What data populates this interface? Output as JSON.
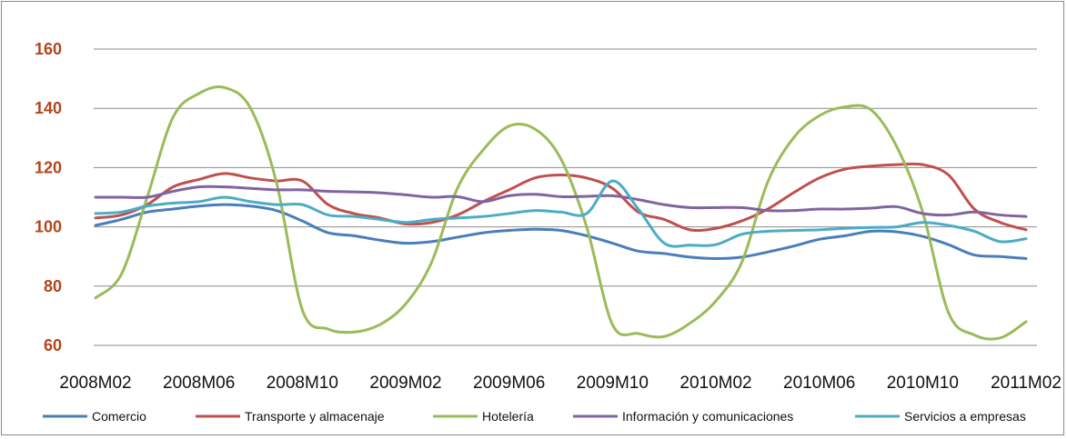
{
  "chart_data": {
    "type": "line",
    "title": "",
    "xlabel": "",
    "ylabel": "",
    "ylim": [
      60,
      160
    ],
    "yticks": [
      "60",
      "80",
      "100",
      "120",
      "140",
      "160"
    ],
    "grid": true,
    "legend_position": "bottom",
    "x": [
      "2008M02",
      "2008M03",
      "2008M04",
      "2008M05",
      "2008M06",
      "2008M07",
      "2008M08",
      "2008M09",
      "2008M10",
      "2008M11",
      "2008M12",
      "2009M01",
      "2009M02",
      "2009M03",
      "2009M04",
      "2009M05",
      "2009M06",
      "2009M07",
      "2009M08",
      "2009M09",
      "2009M10",
      "2009M11",
      "2009M12",
      "2010M01",
      "2010M02",
      "2010M03",
      "2010M04",
      "2010M05",
      "2010M06",
      "2010M07",
      "2010M08",
      "2010M09",
      "2010M10",
      "2010M11",
      "2010M12",
      "2011M01",
      "2011M02"
    ],
    "xticks": [
      "2008M02",
      "2008M06",
      "2008M10",
      "2009M02",
      "2009M06",
      "2009M10",
      "2010M02",
      "2010M06",
      "2010M10",
      "2011M02"
    ],
    "series": [
      {
        "name": "Comercio",
        "color": "#4a7ebb",
        "values": [
          100.5,
          102.5,
          105,
          106,
          107,
          107.5,
          107,
          105.5,
          102,
          98,
          97,
          95.5,
          94.5,
          95,
          96.5,
          98,
          98.8,
          99.2,
          98.8,
          97,
          94.5,
          91.8,
          91,
          89.8,
          89.3,
          89.8,
          91.5,
          93.5,
          95.8,
          97,
          98.5,
          98.3,
          96.8,
          94,
          90.5,
          90,
          89.3
        ]
      },
      {
        "name": "Transporte y almacenaje",
        "color": "#c0504d",
        "values": [
          103,
          104,
          107.5,
          113.5,
          116,
          118,
          116.5,
          115.5,
          115.5,
          107.5,
          104.5,
          103,
          101,
          101.5,
          104,
          108.5,
          112.5,
          116.5,
          117.5,
          116.5,
          113,
          105,
          102.5,
          99,
          99.5,
          102,
          106,
          111.5,
          116.5,
          119.5,
          120.5,
          121,
          121,
          117.5,
          106,
          101.5,
          99
        ]
      },
      {
        "name": "Hotelería",
        "color": "#9bbb59",
        "values": [
          76,
          84,
          110,
          137,
          145,
          147,
          140,
          115,
          72,
          65.5,
          64.5,
          67,
          74,
          88,
          113,
          126,
          134,
          133,
          123,
          100,
          67,
          64,
          63,
          67.5,
          75,
          88,
          115,
          130,
          137.5,
          140.5,
          139.5,
          127,
          105,
          71,
          63.5,
          62.5,
          68
        ]
      },
      {
        "name": "Información y comunicaciones",
        "color": "#8064a2",
        "values": [
          110,
          110,
          110,
          112,
          113.5,
          113.5,
          113,
          112.5,
          112.5,
          112,
          111.8,
          111.5,
          110.8,
          110,
          110.2,
          108.5,
          110.5,
          111,
          110.2,
          110.3,
          110.5,
          109.2,
          107.5,
          106.5,
          106.5,
          106.5,
          105.5,
          105.5,
          106,
          106,
          106.3,
          106.8,
          104.5,
          104,
          105,
          104,
          103.5
        ]
      },
      {
        "name": "Servicios a empresas",
        "color": "#4bacc6",
        "values": [
          104.5,
          105,
          107,
          108,
          108.5,
          110,
          108.5,
          107.5,
          107.5,
          104,
          103.5,
          102.5,
          101.5,
          102.5,
          103,
          103.5,
          104.5,
          105.5,
          105,
          104.5,
          115.5,
          106,
          94.5,
          93.8,
          94,
          97.5,
          98.5,
          98.8,
          99,
          99.5,
          99.8,
          100,
          101.5,
          100.5,
          98.5,
          95,
          96
        ]
      }
    ]
  }
}
